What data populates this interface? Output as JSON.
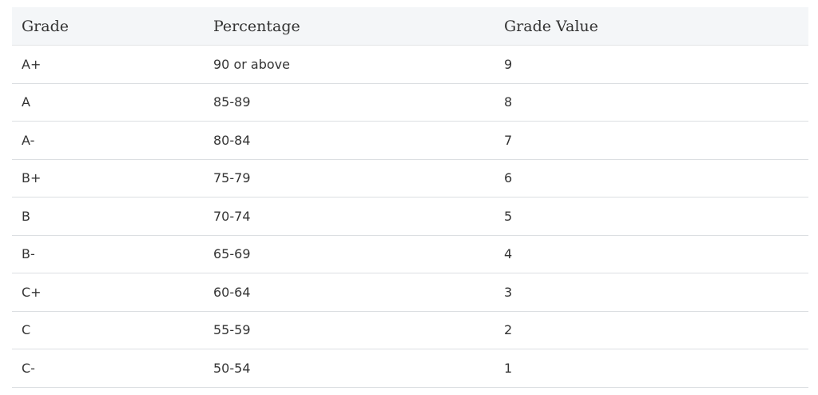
{
  "table": {
    "header": [
      "Grade",
      "Percentage",
      "Grade Value"
    ],
    "rows": [
      [
        "A+",
        "90 or above",
        9
      ],
      [
        "A",
        "85-89",
        8
      ],
      [
        "A-",
        "80-84",
        7
      ],
      [
        "B+",
        "75-79",
        6
      ],
      [
        "B",
        "70-74",
        5
      ],
      [
        "B-",
        "65-69",
        4
      ],
      [
        "C+",
        "60-64",
        3
      ],
      [
        "C",
        "55-59",
        2
      ],
      [
        "C-",
        "50-54",
        1
      ]
    ]
  }
}
